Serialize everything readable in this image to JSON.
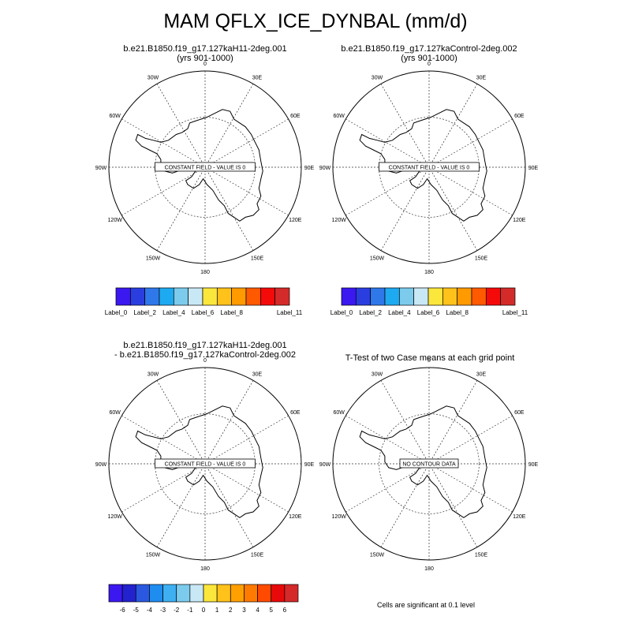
{
  "title": "MAM QFLX_ICE_DYNBAL (mm/d)",
  "panels": [
    {
      "line1": "b.e21.B1850.f19_g17.127kaH11-2deg.001",
      "line2": "(yrs 901-1000)",
      "box_text": "CONSTANT FIELD - VALUE IS 0"
    },
    {
      "line1": "b.e21.B1850.f19_g17.127kaControl-2deg.002",
      "line2": "(yrs 901-1000)",
      "box_text": "CONSTANT FIELD - VALUE IS 0"
    },
    {
      "line1": "b.e21.B1850.f19_g17.127kaH11-2deg.001",
      "line2": "- b.e21.B1850.f19_g17.127kaControl-2deg.002",
      "box_text": "CONSTANT FIELD - VALUE IS 0"
    },
    {
      "line1": "T-Test of two Case means at each grid point",
      "line2": "",
      "box_text": "NO CONTOUR DATA"
    }
  ],
  "longitude_labels": [
    "0",
    "30E",
    "60E",
    "90E",
    "120E",
    "150E",
    "180",
    "150W",
    "120W",
    "90W",
    "60W",
    "30W"
  ],
  "colorbar_top": {
    "colors": [
      "#3b18f0",
      "#2a3ee0",
      "#2f78ea",
      "#1eaaf0",
      "#7ccbec",
      "#c9e8f5",
      "#fbe63c",
      "#ffc21a",
      "#ff9a00",
      "#ff5a00",
      "#f50a0a",
      "#d42a2a"
    ],
    "labels": [
      "Label_0",
      "Label_2",
      "Label_4",
      "Label_6",
      "Label_8",
      "Label_11"
    ]
  },
  "colorbar_bottom": {
    "colors": [
      "#3b18f0",
      "#2322cf",
      "#2b58e0",
      "#1f8cf0",
      "#3eb0f2",
      "#7ccbec",
      "#c9e8f5",
      "#fbe63c",
      "#ffc21a",
      "#ffa000",
      "#ff7a00",
      "#ff4a00",
      "#e80a0a",
      "#d42a2a"
    ],
    "labels": [
      "-6",
      "-5",
      "-4",
      "-3",
      "-2",
      "-1",
      "0",
      "1",
      "2",
      "3",
      "4",
      "5",
      "6"
    ]
  },
  "footnote": "Cells are significant at 0.1 level"
}
